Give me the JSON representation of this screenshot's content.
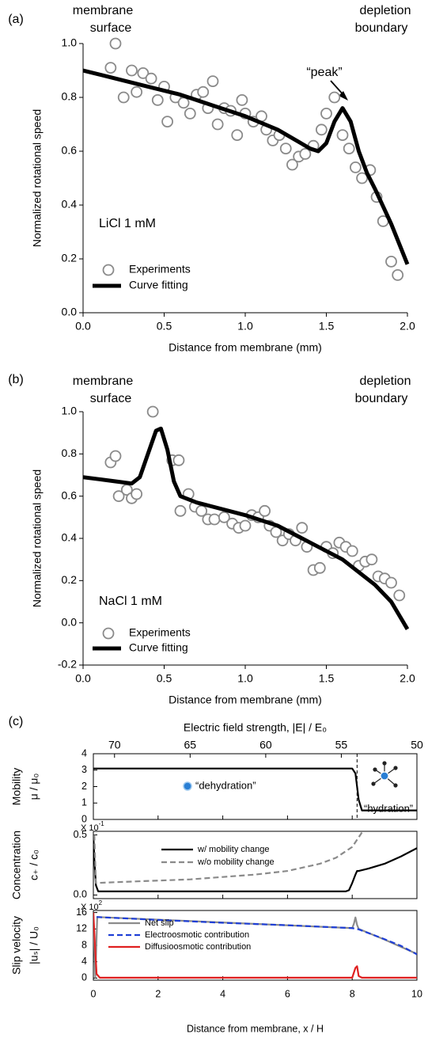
{
  "chart_data": [
    {
      "type": "scatter-line",
      "panel_label": "(a)",
      "annotations": [
        "membrane",
        "surface",
        "depletion",
        "boundary",
        "“peak”",
        "LiCl 1 mM"
      ],
      "xlabel": "Distance from membrane (mm)",
      "ylabel": "Normalized rotational speed",
      "xlim": [
        0,
        2
      ],
      "ylim": [
        0,
        1
      ],
      "xticks": [
        {
          "value": 0,
          "label": "0.0"
        },
        0.5,
        {
          "value": 1,
          "label": "1.0"
        },
        1.5,
        {
          "value": 2,
          "label": "2.0"
        }
      ],
      "yticks": [
        {
          "value": 0,
          "label": "0.0"
        },
        0.2,
        0.4,
        0.6,
        0.8,
        {
          "value": 1,
          "label": "1.0"
        }
      ],
      "grid": false,
      "frame": false,
      "legend": "lower left",
      "series": [
        {
          "name": "Experiments",
          "mode": "markers",
          "color": "#8a8a8a",
          "x": [
            0.2,
            0.17,
            0.25,
            0.3,
            0.33,
            0.37,
            0.42,
            0.46,
            0.5,
            0.52,
            0.57,
            0.62,
            0.66,
            0.7,
            0.74,
            0.77,
            0.8,
            0.83,
            0.87,
            0.91,
            0.95,
            0.98,
            1.0,
            1.05,
            1.1,
            1.13,
            1.17,
            1.21,
            1.25,
            1.29,
            1.33,
            1.37,
            1.42,
            1.47,
            1.5,
            1.55,
            1.6,
            1.64,
            1.68,
            1.72,
            1.77,
            1.81,
            1.85,
            1.9,
            1.94
          ],
          "values": [
            1.0,
            0.91,
            0.8,
            0.9,
            0.82,
            0.89,
            0.87,
            0.79,
            0.84,
            0.71,
            0.8,
            0.78,
            0.74,
            0.81,
            0.82,
            0.76,
            0.86,
            0.7,
            0.76,
            0.75,
            0.66,
            0.79,
            0.74,
            0.71,
            0.73,
            0.68,
            0.64,
            0.66,
            0.61,
            0.55,
            0.58,
            0.59,
            0.62,
            0.68,
            0.74,
            0.8,
            0.66,
            0.61,
            0.54,
            0.5,
            0.53,
            0.43,
            0.34,
            0.19,
            0.14
          ]
        },
        {
          "name": "Curve fitting",
          "mode": "line",
          "color": "#000000",
          "x": [
            0,
            0.2,
            0.4,
            0.6,
            0.8,
            1.0,
            1.2,
            1.4,
            1.45,
            1.5,
            1.55,
            1.6,
            1.65,
            1.7,
            1.75,
            1.8,
            1.9,
            2.0
          ],
          "values": [
            0.9,
            0.87,
            0.84,
            0.81,
            0.77,
            0.73,
            0.68,
            0.61,
            0.6,
            0.63,
            0.71,
            0.76,
            0.71,
            0.6,
            0.52,
            0.46,
            0.33,
            0.18
          ]
        }
      ]
    },
    {
      "type": "scatter-line",
      "panel_label": "(b)",
      "annotations": [
        "membrane",
        "surface",
        "depletion",
        "boundary",
        "NaCl 1 mM"
      ],
      "xlabel": "Distance from membrane (mm)",
      "ylabel": "Normalized rotational speed",
      "xlim": [
        0,
        2
      ],
      "ylim": [
        -0.2,
        1
      ],
      "xticks": [
        {
          "value": 0,
          "label": "0.0"
        },
        0.5,
        {
          "value": 1,
          "label": "1.0"
        },
        1.5,
        {
          "value": 2,
          "label": "2.0"
        }
      ],
      "yticks": [
        -0.2,
        {
          "value": 0,
          "label": "0.0"
        },
        0.2,
        0.4,
        0.6,
        0.8,
        {
          "value": 1,
          "label": "1.0"
        }
      ],
      "grid": false,
      "frame": false,
      "legend": "lower left",
      "series": [
        {
          "name": "Experiments",
          "mode": "markers",
          "color": "#8a8a8a",
          "x": [
            0.17,
            0.2,
            0.22,
            0.27,
            0.3,
            0.33,
            0.43,
            0.55,
            0.59,
            0.6,
            0.65,
            0.69,
            0.73,
            0.77,
            0.81,
            0.87,
            0.92,
            0.96,
            1.0,
            1.04,
            1.08,
            1.12,
            1.15,
            1.19,
            1.23,
            1.27,
            1.31,
            1.35,
            1.38,
            1.42,
            1.46,
            1.5,
            1.54,
            1.58,
            1.62,
            1.66,
            1.7,
            1.74,
            1.78,
            1.82,
            1.86,
            1.9,
            1.95
          ],
          "values": [
            0.76,
            0.79,
            0.6,
            0.63,
            0.59,
            0.61,
            1.0,
            0.77,
            0.77,
            0.53,
            0.61,
            0.55,
            0.53,
            0.49,
            0.49,
            0.5,
            0.47,
            0.45,
            0.46,
            0.51,
            0.5,
            0.53,
            0.46,
            0.43,
            0.39,
            0.42,
            0.39,
            0.45,
            0.36,
            0.25,
            0.26,
            0.36,
            0.33,
            0.38,
            0.36,
            0.34,
            0.27,
            0.29,
            0.3,
            0.22,
            0.21,
            0.19,
            0.13
          ]
        },
        {
          "name": "Curve fitting",
          "mode": "line",
          "color": "#000000",
          "x": [
            0,
            0.1,
            0.2,
            0.3,
            0.35,
            0.4,
            0.45,
            0.48,
            0.52,
            0.56,
            0.6,
            0.7,
            0.8,
            1.0,
            1.2,
            1.4,
            1.6,
            1.8,
            1.9,
            2.0
          ],
          "values": [
            0.69,
            0.68,
            0.67,
            0.66,
            0.69,
            0.8,
            0.91,
            0.92,
            0.82,
            0.67,
            0.6,
            0.57,
            0.55,
            0.51,
            0.46,
            0.38,
            0.3,
            0.18,
            0.1,
            -0.03
          ]
        }
      ]
    },
    {
      "type": "line",
      "panel_label": "(c)",
      "x2label": "Electric field strength, |E| / E₀",
      "x2lim": [
        71.4,
        50
      ],
      "x2ticks": [
        70,
        65,
        60,
        55,
        50
      ],
      "annotations": [
        "“dehydration”",
        "“hydration”"
      ],
      "ylabel": [
        "Mobility",
        "μ / μ₀"
      ],
      "xlim": [
        0,
        10
      ],
      "ylim": [
        0,
        4
      ],
      "yticks": [
        0,
        1,
        2,
        3,
        4
      ],
      "grid": false,
      "frame": true,
      "vline_x": 8.15,
      "series": [
        {
          "mode": "line",
          "color": "#000000",
          "x": [
            0,
            8.0,
            8.1,
            8.2,
            8.3,
            10
          ],
          "values": [
            3.1,
            3.1,
            2.8,
            1.2,
            0.55,
            0.55
          ]
        }
      ]
    },
    {
      "type": "line",
      "ylabel": [
        "Concentration",
        "c₊ / c₀"
      ],
      "scale": {
        "base": "X 10",
        "exp": "-1"
      },
      "xlim": [
        0,
        10
      ],
      "ylim": [
        -0.03,
        0.53
      ],
      "yticks": [
        {
          "value": 0,
          "label": "0.0"
        },
        0.5
      ],
      "grid": false,
      "frame": true,
      "legend": "upper left",
      "series": [
        {
          "name": "w/ mobility change",
          "mode": "line",
          "color": "#000000",
          "x": [
            0,
            0.03,
            0.08,
            0.15,
            1,
            7.8,
            7.9,
            8.0,
            8.1,
            8.15,
            8.2,
            8.5,
            9,
            9.5,
            10
          ],
          "values": [
            0.5,
            0.3,
            0.08,
            0.03,
            0.03,
            0.03,
            0.04,
            0.1,
            0.17,
            0.2,
            0.2,
            0.22,
            0.26,
            0.32,
            0.39
          ]
        },
        {
          "name": "w/o mobility change",
          "mode": "line",
          "dash": true,
          "color": "#8a8a8a",
          "x": [
            0.03,
            0.08,
            1,
            2,
            3,
            4,
            5,
            6,
            7,
            7.5,
            8,
            8.3
          ],
          "values": [
            0.5,
            0.1,
            0.11,
            0.12,
            0.13,
            0.15,
            0.17,
            0.2,
            0.26,
            0.31,
            0.4,
            0.52
          ]
        }
      ]
    },
    {
      "type": "line",
      "ylabel": [
        "Slip velocity",
        "|uₛ| / U₀"
      ],
      "scale": {
        "base": "X 10",
        "exp": "2"
      },
      "xlabel": "Distance from membrane, x / H",
      "xlim": [
        0,
        10
      ],
      "ylim": [
        -0.5,
        16.5
      ],
      "xticks": [
        0,
        2,
        4,
        6,
        8,
        10
      ],
      "yticks": [
        0,
        4,
        8,
        12,
        16
      ],
      "grid": false,
      "frame": true,
      "legend": "upper left",
      "series": [
        {
          "name": "Net slip",
          "mode": "line",
          "color": "#8c8c8c",
          "x": [
            0,
            0.06,
            0.12,
            8.0,
            8.05,
            8.1,
            8.15,
            8.2,
            9,
            10
          ],
          "values": [
            16,
            0.2,
            14.9,
            12.2,
            13.2,
            14.8,
            13,
            12,
            9.4,
            5.9
          ]
        },
        {
          "name": "Electroosmotic contribution",
          "mode": "line",
          "dash": true,
          "color": "#1f3fd6",
          "x": [
            0.1,
            2,
            4,
            6,
            8,
            8.2,
            9,
            9.5,
            10
          ],
          "values": [
            14.9,
            14.2,
            13.5,
            12.9,
            12.2,
            11.9,
            9.5,
            7.9,
            5.8
          ]
        },
        {
          "name": "Diffusioosmotic contribution",
          "mode": "line",
          "color": "#e02020",
          "x": [
            0,
            0.05,
            0.1,
            0.2,
            8.0,
            8.1,
            8.15,
            8.2,
            8.3,
            10
          ],
          "values": [
            16,
            8,
            1,
            0.1,
            0.1,
            2.5,
            2.9,
            0.5,
            0.1,
            0.1
          ]
        }
      ]
    }
  ]
}
